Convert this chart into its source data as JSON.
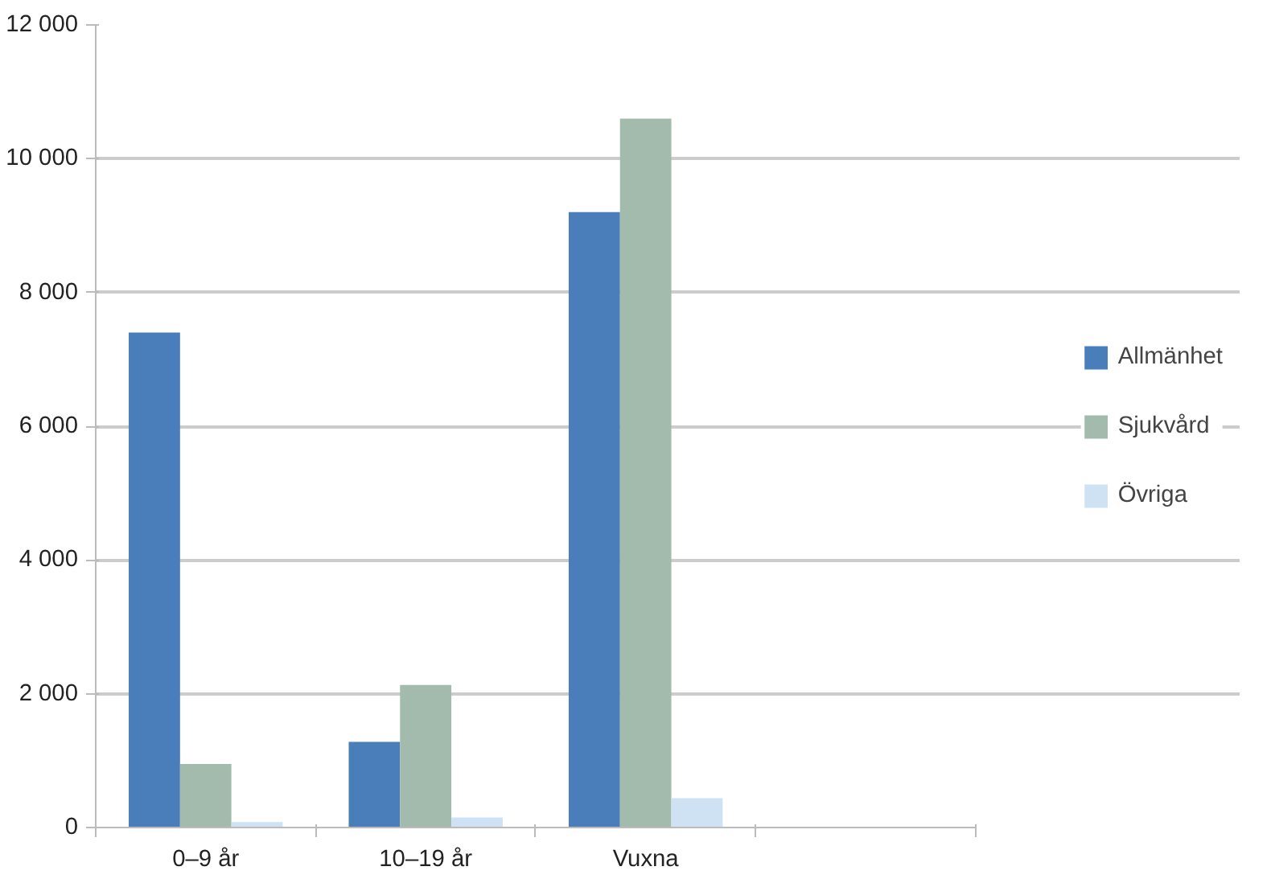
{
  "chart_data": {
    "type": "bar",
    "categories": [
      "0–9 år",
      "10–19 år",
      "Vuxna",
      null
    ],
    "series": [
      {
        "name": "Allmänhet",
        "color": "#4a7ebb",
        "values": [
          7400,
          1280,
          9200,
          null
        ]
      },
      {
        "name": "Sjukvård",
        "color": "#a3bbad",
        "values": [
          950,
          2130,
          10600,
          null
        ]
      },
      {
        "name": "Övriga",
        "color": "#cfe2f3",
        "values": [
          80,
          150,
          440,
          null
        ]
      }
    ],
    "ylim": [
      0,
      12000
    ],
    "yticks": [
      {
        "value": 0,
        "label": "0"
      },
      {
        "value": 2000,
        "label": "2 000"
      },
      {
        "value": 4000,
        "label": "4 000"
      },
      {
        "value": 6000,
        "label": "6 000"
      },
      {
        "value": 8000,
        "label": "8 000"
      },
      {
        "value": 10000,
        "label": "10 000"
      },
      {
        "value": 12000,
        "label": "12 000"
      }
    ],
    "grid": "y",
    "legend": "right"
  }
}
